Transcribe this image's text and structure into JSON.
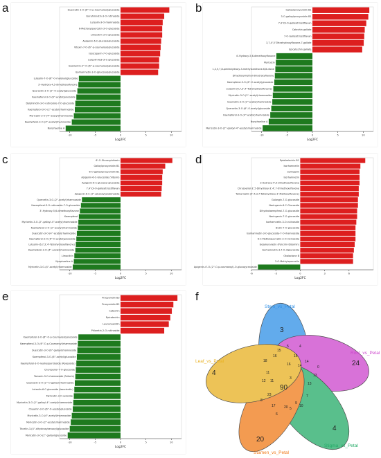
{
  "colors": {
    "up": "#dd1f1f",
    "down": "#1e7a1e",
    "axis": "#444444"
  },
  "chart_data": [
    {
      "panel": "a",
      "type": "bar",
      "orientation": "horizontal",
      "xlabel": "Log2FC",
      "xlim": [
        -12,
        12
      ],
      "xticks": [
        -10,
        -5,
        0,
        5,
        10
      ],
      "categories": [
        "Quercetin 3-O-(6''-O-p-Coumaroyl)glucoside",
        "Isorahmnetin-3-O-rutinoside",
        "Luteolin-3-O-rhamnoside",
        "6-Methoxyquercetin-3-O-glycoside",
        "Limocitrin 3-O-glucoside",
        "Apigenin-6-C-glucosylglucoside",
        "Vitexin-7-O-(6''-p-coumaroyl)glucoside",
        "Isoscoparin-7-O-glucoside",
        "Luteolin-6,8-di-C-glucoside",
        "Isoorientin-2''-O-(6''-p-coumaroyl)glucoside",
        "Isorhamnetin-3-O-(glucosyl)glucoside",
        "Luteolin-7-O-(6''-O-malonyl)glucoside",
        "3'-Hydroxy-4,5-dimethoxyflavone",
        "Quercetin-3-O-(2''-O-acetyl)glucoside",
        "Kaempferol-3-O-(6''-acetyl)glucoside",
        "Delphinidin-3-O-rutinoside-7-O-glucoside",
        "Kaempferol-3-O-(2''-acetyl)rhamnoside",
        "Myricetin-3-O-(4''-acetyl)rhamnoside",
        "Kaempferol-3-O-(4''-acetyl)rhamnoside",
        "Nynphaeline A"
      ],
      "values": [
        9.6,
        8.6,
        8.3,
        8.2,
        8.2,
        8.0,
        7.9,
        7.8,
        7.6,
        7.6,
        7.4,
        -8.2,
        -8.3,
        -8.5,
        -8.7,
        -8.9,
        -9.0,
        -9.2,
        -9.6,
        -10.8
      ]
    },
    {
      "panel": "b",
      "type": "bar",
      "orientation": "horizontal",
      "xlabel": "Log2FC",
      "xlim": [
        -12,
        12
      ],
      "xticks": [
        -10,
        -5,
        0,
        5,
        10
      ],
      "categories": [
        "Galloylprocyanidin B1",
        "3-O-galloylprocyanidin B1",
        "7,4'-Di-O-galloyltricetiflavan",
        "Catechin gallate",
        "7-O-Galloyltricetiflavan",
        "3,7,4',5'-Tetrahydroxyflavone-7-gallate",
        "Epicatechin gallate",
        "4'-Hydroxy-5,6-dimethoxyflavone",
        "Myricetin",
        "1,2,5,7,8-pentahydroxy-3-methylxanthone-6,8-dione",
        "Dihydroxymethyl-dihydroxyflavone",
        "Kaempferol-3-O-(6''-O-acetyl)glucoside",
        "Luteolin-(6,7,3',4'-Tetrahydroxyflavone)",
        "Myricetin-3-O-(2''-acetyl)rhamnoside",
        "Quercetin-3-O-(2''-acetyl)rhamnoside",
        "Quercetin-3-O-(6''-O-acetyl)glucoside",
        "Kaempferol-3-O-(4''-acetyl)rhamnoside",
        "Nynphaeline A",
        "Myricetin-3-O-(2''-galloyl-4''-acetyl)rhamnoside"
      ],
      "values": [
        11.2,
        11.0,
        10.6,
        10.3,
        10.2,
        10.1,
        9.8,
        -7.1,
        -7.2,
        -7.3,
        -7.4,
        -7.5,
        -7.7,
        -7.8,
        -7.9,
        -8.1,
        -8.3,
        -8.6,
        -9.8
      ]
    },
    {
      "panel": "c",
      "type": "bar",
      "orientation": "horizontal",
      "xlabel": "Log2FC",
      "xlim": [
        -12,
        12
      ],
      "xticks": [
        -10,
        -5,
        0,
        5,
        10
      ],
      "categories": [
        "6'-O-Glucosylvitexin",
        "Galloylprocyanidin B1",
        "6-O-galloylprocyanidin B1",
        "Apigenin-6-C-Glucoside (Vitexin)",
        "Apigenin-6-C-glucosyl-glucoside",
        "7,4'-Di-O-galloyltricetiflavan",
        "Apigenin-6-C-(2''-glucosyl)arabinoside",
        "Quercetin-3-O-(2''-acetyl)rhamnoside",
        "Kaempferol-3-O-rutinoside-7-O-glucoside",
        "3'-Hydroxy-5,6-dimethoxyflavone",
        "Kaempferol",
        "Myricetin-3-O-(2''-galloyl-4''-acetyl)rhamnoside",
        "Kaempferol-3-O-(2''-acetyl)rhamnoside",
        "Quercetin-3-O-(4''-acetyl)rhamnoside",
        "Kaempferol-3-O-(6''-O-acetyl)glucoside",
        "Luteolin-(6,7,3',4'-Tetrahydroxyflavone)",
        "Kaempferol-3-O-(4''-acetyl)rhamnoside",
        "Limocitrin",
        "Nynphaeline A",
        "Myricetin-3-O-(4''-acetyl)rhamnoside"
      ],
      "values": [
        10.2,
        8.8,
        8.3,
        8.2,
        8.2,
        8.1,
        8.0,
        -7.6,
        -7.8,
        -8.0,
        -8.2,
        -8.3,
        -8.4,
        -8.6,
        -8.7,
        -8.8,
        -8.9,
        -9.1,
        -9.2,
        -9.4
      ]
    },
    {
      "panel": "d",
      "type": "bar",
      "orientation": "horizontal",
      "xlabel": "Log2FC",
      "xlim": [
        -6,
        9
      ],
      "xticks": [
        -6,
        -3,
        0,
        3,
        6
      ],
      "categories": [
        "Epiafzelechin-B1",
        "Isorhamnetin",
        "Syringetin",
        "Isorhamnetin",
        "3-Hydroxy-4',5-dimethoxyflavone",
        "Chrysoeriol-3',5-Dihydroxy-3',4',7-trimethoxyflavone",
        "Tamarixetin (4',5,3,7-Tetrahydroxy-3'-Methoxyflavone)",
        "Galangin-7-O-glucoside",
        "Naringenin-6-C-Glucoside",
        "Dihydrokaempferol-7-O-glucoside",
        "Naringenin-7-O-glucoside",
        "Isorhamnetin-3-O-rutinoside",
        "Butin-7-O-glucoside",
        "Isorhamnetin-3-O-glucoside-7-O-rhamnoside",
        "6-C-Methylquercetin-3-O-rutinoside",
        "Isosakuranetin (Poncirin-Didymin)",
        "Isorhamnetin-3,7-O-diglucoside",
        "Okalactone B",
        "3-O-Methylquercetin",
        "Apigenin-4'-O-(2''-O-p-coumaroyl)-O-glucopyranoside"
      ],
      "values": [
        8.0,
        7.4,
        7.3,
        7.3,
        7.3,
        7.2,
        7.2,
        7.1,
        7.1,
        7.0,
        7.0,
        6.9,
        6.8,
        6.8,
        6.8,
        6.7,
        6.6,
        6.5,
        6.5,
        -5.2
      ]
    },
    {
      "panel": "e",
      "type": "bar",
      "orientation": "horizontal",
      "xlabel": "Log2FC",
      "xlim": [
        -12,
        12
      ],
      "xticks": [
        -10,
        -5,
        0,
        5,
        10
      ],
      "categories": [
        "Procyanidin B3",
        "Procyanidin B2",
        "Catechin",
        "Epicatechin",
        "Leucocyanidin",
        "Phloretin-2-O-rutinoside",
        "Kaempferol-3-O-(6''-O-p-Coumaroyl)glucoside",
        "Kaempferol-3-O-(6''-O-p-Coumaroyl)rhamnoside",
        "Quercetin-3-O-(6''-galloyl)rhamnoside",
        "Kaempferol-3-O-(6''-acetyl)glucoside",
        "Kaempferol-3-O-neohesperidoside (Roseoside)",
        "Chrysoeriol-7-O-glucoside",
        "Tamarin-3-O-rhamnoside (Foliorin)",
        "Quercetin-3-O-(2''-O-galloyl)rhamnoside",
        "Luteolin-6-C-glucoside (Isoorientin)",
        "Myricetin-3-O-xyloside",
        "Myricetin-3-O-(2''-galloyl-4''-acetyl)rhamnoside",
        "Chyamin-3-O-(6''-O-acetyl)glucoside",
        "Myricetin-3-O-(4''-acetyl)rhamnoside",
        "Myricetin-3-O-(2''-acetyl)rhamnoside",
        "Tricetin-3-(4''-dihydroxybenzoyl)glucoside",
        "Myricetin-3-O-(2''-galloyl)glucoside"
      ],
      "values": [
        11.2,
        10.4,
        10.1,
        9.8,
        9.5,
        8.6,
        -8.3,
        -8.4,
        -8.5,
        -8.6,
        -8.7,
        -8.8,
        -8.9,
        -9.0,
        -9.1,
        -9.2,
        -9.3,
        -9.4,
        -9.6,
        -9.8,
        -10.0,
        -10.4
      ]
    },
    {
      "panel": "f",
      "type": "venn",
      "sets": [
        {
          "name": "Stem_vs_Petal",
          "color": "#2e8fe6"
        },
        {
          "name": "Root_vs_Petal",
          "color": "#cc44cc"
        },
        {
          "name": "Stigma_vs_Petal",
          "color": "#22aa66"
        },
        {
          "name": "Stamen_vs_Petal",
          "color": "#f07a18"
        },
        {
          "name": "Leaf_vs_Petal",
          "color": "#e8b020"
        }
      ],
      "numbers": [
        "3",
        "24",
        "4",
        "20",
        "4",
        "90",
        "18",
        "16",
        "14",
        "15",
        "14",
        "16",
        "13",
        "13",
        "11",
        "12",
        "11",
        "20",
        "23",
        "17",
        "9",
        "5",
        "7",
        "10",
        "6",
        "8",
        "15",
        "4",
        "5",
        "3",
        "0"
      ]
    }
  ],
  "panel_letters": [
    "a",
    "b",
    "c",
    "d",
    "e",
    "f"
  ]
}
